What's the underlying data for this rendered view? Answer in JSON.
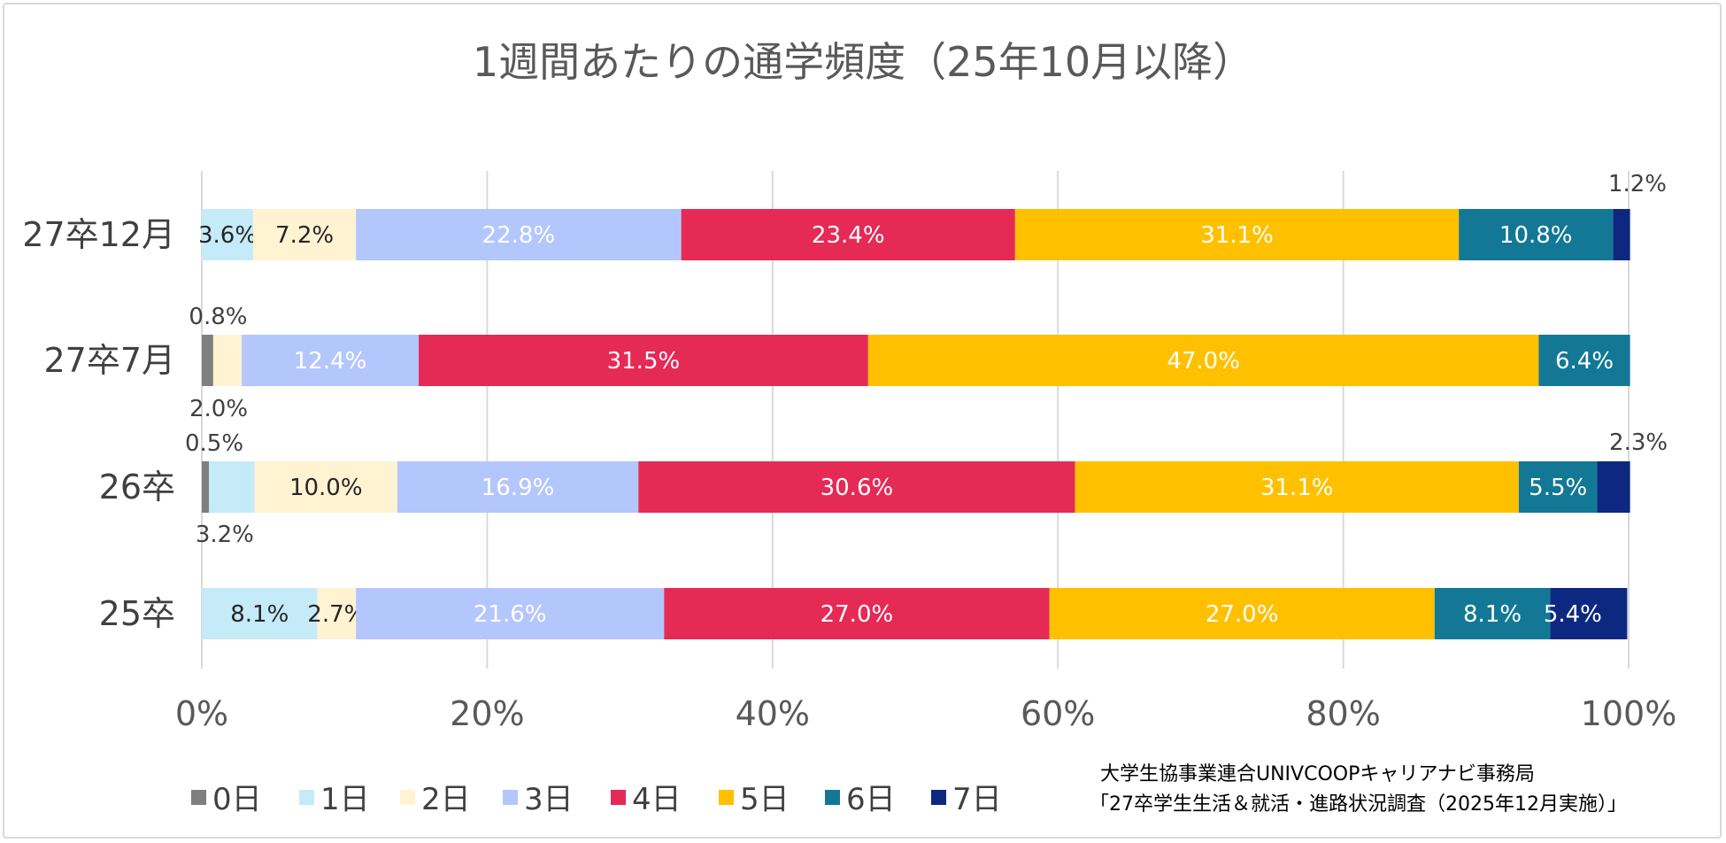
{
  "chart_data": {
    "type": "bar",
    "orientation": "horizontal",
    "stacked": "percent",
    "title": "1週間あたりの通学頻度（25年10月以降）",
    "categories": [
      "27卒12月",
      "27卒7月",
      "26卒",
      "25卒"
    ],
    "series": [
      {
        "name": "0日",
        "color": "#7f7f7f",
        "values": [
          0,
          0.8,
          0.5,
          0
        ]
      },
      {
        "name": "1日",
        "color": "#c5ebf9",
        "values": [
          3.6,
          0,
          3.2,
          8.1
        ]
      },
      {
        "name": "2日",
        "color": "#fff3d1",
        "values": [
          7.2,
          2.0,
          10.0,
          2.7
        ]
      },
      {
        "name": "3日",
        "color": "#b4c7fc",
        "values": [
          22.8,
          12.4,
          16.9,
          21.6
        ]
      },
      {
        "name": "4日",
        "color": "#e52a56",
        "values": [
          23.4,
          31.5,
          30.6,
          27.0
        ]
      },
      {
        "name": "5日",
        "color": "#ffc000",
        "values": [
          31.1,
          47.0,
          31.1,
          27.0
        ]
      },
      {
        "name": "6日",
        "color": "#127896",
        "values": [
          10.8,
          6.4,
          5.5,
          8.1
        ]
      },
      {
        "name": "7日",
        "color": "#0d2880",
        "values": [
          1.2,
          0,
          2.3,
          5.4
        ]
      }
    ],
    "data_labels": [
      [
        "",
        "3.6%",
        "7.2%",
        "22.8%",
        "23.4%",
        "31.1%",
        "10.8%",
        "1.2%"
      ],
      [
        "0.8%",
        "",
        "2.0%",
        "12.4%",
        "31.5%",
        "47.0%",
        "6.4%",
        ""
      ],
      [
        "0.5%",
        "3.2%",
        "10.0%",
        "16.9%",
        "30.6%",
        "31.1%",
        "5.5%",
        "2.3%"
      ],
      [
        "",
        "8.1%",
        "2.7%",
        "21.6%",
        "27.0%",
        "27.0%",
        "8.1%",
        "5.4%"
      ]
    ],
    "xlim": [
      0,
      100
    ],
    "xticks": [
      "0%",
      "20%",
      "40%",
      "60%",
      "80%",
      "100%"
    ],
    "grid": true,
    "legend": "bottom"
  },
  "source": {
    "line1": "大学生協事業連合UNIVCOOPキャリアナビ事務局",
    "line2": "「27卒学生生活＆就活・進路状況調査（2025年12月実施）」"
  }
}
